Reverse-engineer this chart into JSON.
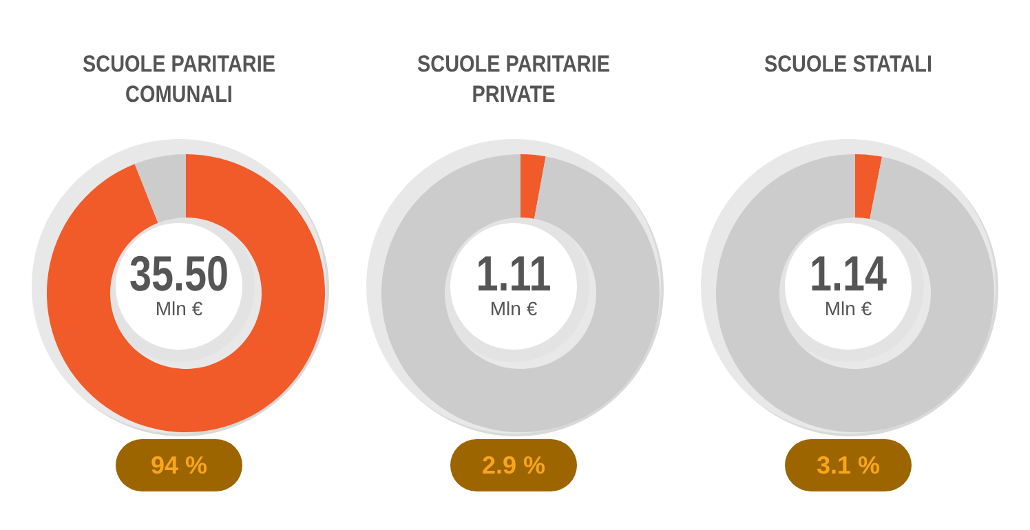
{
  "chart_data": [
    {
      "type": "donut",
      "title": "SCUOLE PARITARIE COMUNALI",
      "categories": [
        null,
        null
      ],
      "values": [
        94,
        6
      ],
      "colors": [
        "#f15a29",
        "#cccccc"
      ],
      "annotations": [
        "35.50",
        "Mln €",
        "94 %"
      ]
    },
    {
      "type": "donut",
      "title": "SCUOLE PARITARIE PRIVATE",
      "categories": [
        null,
        null
      ],
      "values": [
        2.9,
        97.1
      ],
      "colors": [
        "#f15a29",
        "#cccccc"
      ],
      "annotations": [
        "1.11",
        "Mln €",
        "2.9 %"
      ]
    },
    {
      "type": "donut",
      "title": "SCUOLE STATALI",
      "categories": [
        null,
        null
      ],
      "values": [
        3.1,
        96.9
      ],
      "colors": [
        "#f15a29",
        "#cccccc"
      ],
      "annotations": [
        "1.14",
        "Mln €",
        "3.1 %"
      ]
    }
  ]
}
